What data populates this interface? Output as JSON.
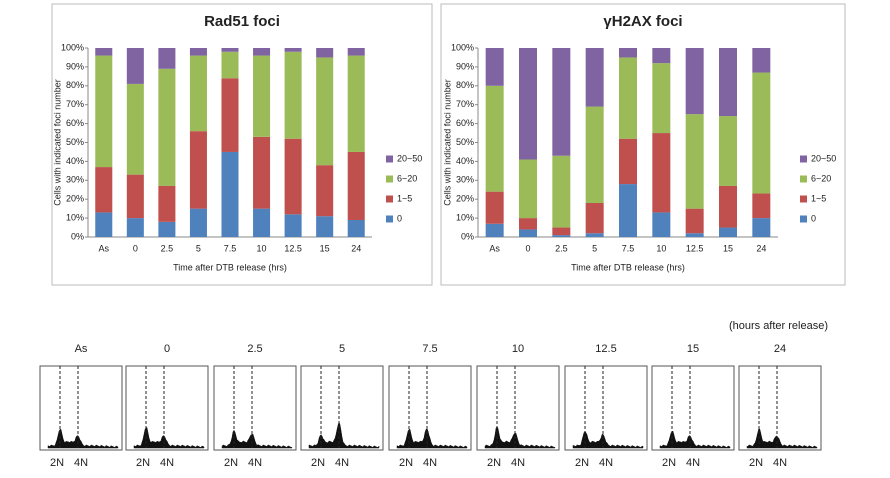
{
  "chart_data": [
    {
      "type": "bar",
      "stacked": true,
      "title": "Rad51 foci",
      "xlabel": "Time after DTB release (hrs)",
      "ylabel": "Cells with indicated foci number",
      "categories": [
        "As",
        "0",
        "2.5",
        "5",
        "7.5",
        "10",
        "12.5",
        "15",
        "24"
      ],
      "series": [
        {
          "name": "0",
          "color": "#4f81bd",
          "values": [
            13,
            10,
            8,
            15,
            45,
            15,
            12,
            11,
            9
          ]
        },
        {
          "name": "1~5",
          "color": "#c0504d",
          "values": [
            24,
            23,
            19,
            41,
            39,
            38,
            40,
            27,
            36
          ]
        },
        {
          "name": "6~20",
          "color": "#9bbb59",
          "values": [
            59,
            48,
            62,
            40,
            14,
            43,
            46,
            57,
            51
          ]
        },
        {
          "name": "20~50",
          "color": "#8064a2",
          "values": [
            4,
            19,
            11,
            4,
            2,
            4,
            2,
            5,
            4
          ]
        }
      ],
      "ylim": [
        0,
        100
      ],
      "yticks": [
        {
          "value": 0,
          "label": "0%"
        },
        {
          "value": 10,
          "label": "10%"
        },
        {
          "value": 20,
          "label": "20%"
        },
        {
          "value": 30,
          "label": "30%"
        },
        {
          "value": 40,
          "label": "40%"
        },
        {
          "value": 50,
          "label": "50%"
        },
        {
          "value": 60,
          "label": "60%"
        },
        {
          "value": 70,
          "label": "70%"
        },
        {
          "value": 80,
          "label": "80%"
        },
        {
          "value": 90,
          "label": "90%"
        },
        {
          "value": 100,
          "label": "100%"
        }
      ],
      "grid": false,
      "legend": "right"
    },
    {
      "type": "bar",
      "stacked": true,
      "title": "γH2AX foci",
      "xlabel": "Time after DTB release (hrs)",
      "ylabel": "Cells with indicated foci number",
      "categories": [
        "As",
        "0",
        "2.5",
        "5",
        "7.5",
        "10",
        "12.5",
        "15",
        "24"
      ],
      "series": [
        {
          "name": "0",
          "color": "#4f81bd",
          "values": [
            7,
            4,
            1,
            2,
            28,
            13,
            2,
            5,
            10
          ]
        },
        {
          "name": "1~5",
          "color": "#c0504d",
          "values": [
            17,
            6,
            4,
            16,
            24,
            42,
            13,
            22,
            13
          ]
        },
        {
          "name": "6~20",
          "color": "#9bbb59",
          "values": [
            56,
            31,
            38,
            51,
            43,
            37,
            50,
            37,
            64
          ]
        },
        {
          "name": "20~50",
          "color": "#8064a2",
          "values": [
            20,
            59,
            57,
            31,
            5,
            8,
            35,
            36,
            13
          ]
        }
      ],
      "ylim": [
        0,
        100
      ],
      "yticks": [
        {
          "value": 0,
          "label": "0%"
        },
        {
          "value": 10,
          "label": "10%"
        },
        {
          "value": 20,
          "label": "20%"
        },
        {
          "value": 30,
          "label": "30%"
        },
        {
          "value": 40,
          "label": "40%"
        },
        {
          "value": 50,
          "label": "50%"
        },
        {
          "value": 60,
          "label": "60%"
        },
        {
          "value": 70,
          "label": "70%"
        },
        {
          "value": 80,
          "label": "80%"
        },
        {
          "value": 90,
          "label": "90%"
        },
        {
          "value": 100,
          "label": "100%"
        }
      ],
      "grid": false,
      "legend": "right"
    }
  ],
  "flow_cytometry": {
    "caption": "(hours after release)",
    "panels": [
      {
        "label": "As",
        "markers": [
          "2N",
          "4N"
        ]
      },
      {
        "label": "0",
        "markers": [
          "2N",
          "4N"
        ]
      },
      {
        "label": "2.5",
        "markers": [
          "2N",
          "4N"
        ]
      },
      {
        "label": "5",
        "markers": [
          "2N",
          "4N"
        ]
      },
      {
        "label": "7.5",
        "markers": [
          "2N",
          "4N"
        ]
      },
      {
        "label": "10",
        "markers": [
          "2N",
          "4N"
        ]
      },
      {
        "label": "12.5",
        "markers": [
          "2N",
          "4N"
        ]
      },
      {
        "label": "15",
        "markers": [
          "2N",
          "4N"
        ]
      },
      {
        "label": "24",
        "markers": [
          "2N",
          "4N"
        ]
      }
    ]
  }
}
